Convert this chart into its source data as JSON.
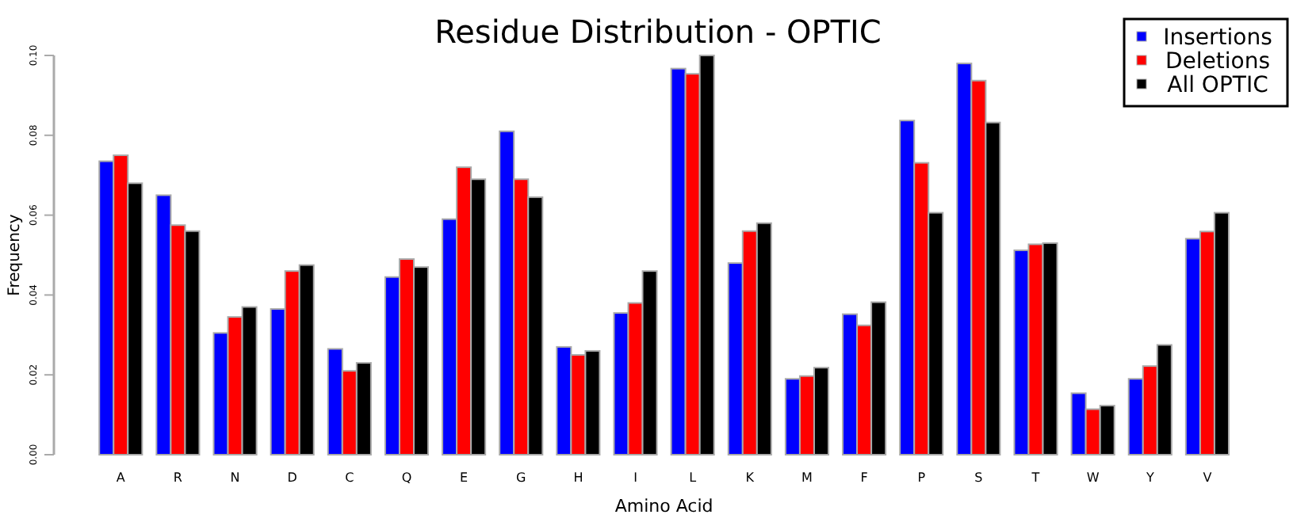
{
  "chart_data": {
    "type": "bar",
    "title": "Residue Distribution - OPTIC",
    "xlabel": "Amino Acid",
    "ylabel": "Frequency",
    "categories": [
      "A",
      "R",
      "N",
      "D",
      "C",
      "Q",
      "E",
      "G",
      "H",
      "I",
      "L",
      "K",
      "M",
      "F",
      "P",
      "S",
      "T",
      "W",
      "Y",
      "V"
    ],
    "series": [
      {
        "name": "Insertions",
        "color": "#0000ff",
        "values": [
          0.0735,
          0.065,
          0.0305,
          0.0365,
          0.0265,
          0.0445,
          0.059,
          0.081,
          0.027,
          0.0355,
          0.0967,
          0.048,
          0.019,
          0.0352,
          0.0837,
          0.098,
          0.0512,
          0.0154,
          0.019,
          0.0541
        ]
      },
      {
        "name": "Deletions",
        "color": "#ff0000",
        "values": [
          0.075,
          0.0575,
          0.0345,
          0.046,
          0.021,
          0.049,
          0.072,
          0.069,
          0.025,
          0.038,
          0.0954,
          0.056,
          0.0197,
          0.0324,
          0.0731,
          0.0937,
          0.0527,
          0.0114,
          0.0222,
          0.0559
        ]
      },
      {
        "name": "All OPTIC",
        "color": "#000000",
        "values": [
          0.068,
          0.056,
          0.037,
          0.0475,
          0.023,
          0.047,
          0.069,
          0.0645,
          0.026,
          0.046,
          0.1,
          0.058,
          0.0218,
          0.0382,
          0.0606,
          0.0832,
          0.053,
          0.0123,
          0.0275,
          0.0606
        ]
      }
    ],
    "ylim": [
      0,
      0.1
    ],
    "yticks": [
      {
        "value": 0,
        "label": "0.00"
      },
      {
        "value": 0.02,
        "label": "0.02"
      },
      {
        "value": 0.04,
        "label": "0.04"
      },
      {
        "value": 0.06,
        "label": "0.06"
      },
      {
        "value": 0.08,
        "label": "0.08"
      },
      {
        "value": 0.1,
        "label": "0.10"
      }
    ],
    "grid": false,
    "legend": "top right"
  }
}
